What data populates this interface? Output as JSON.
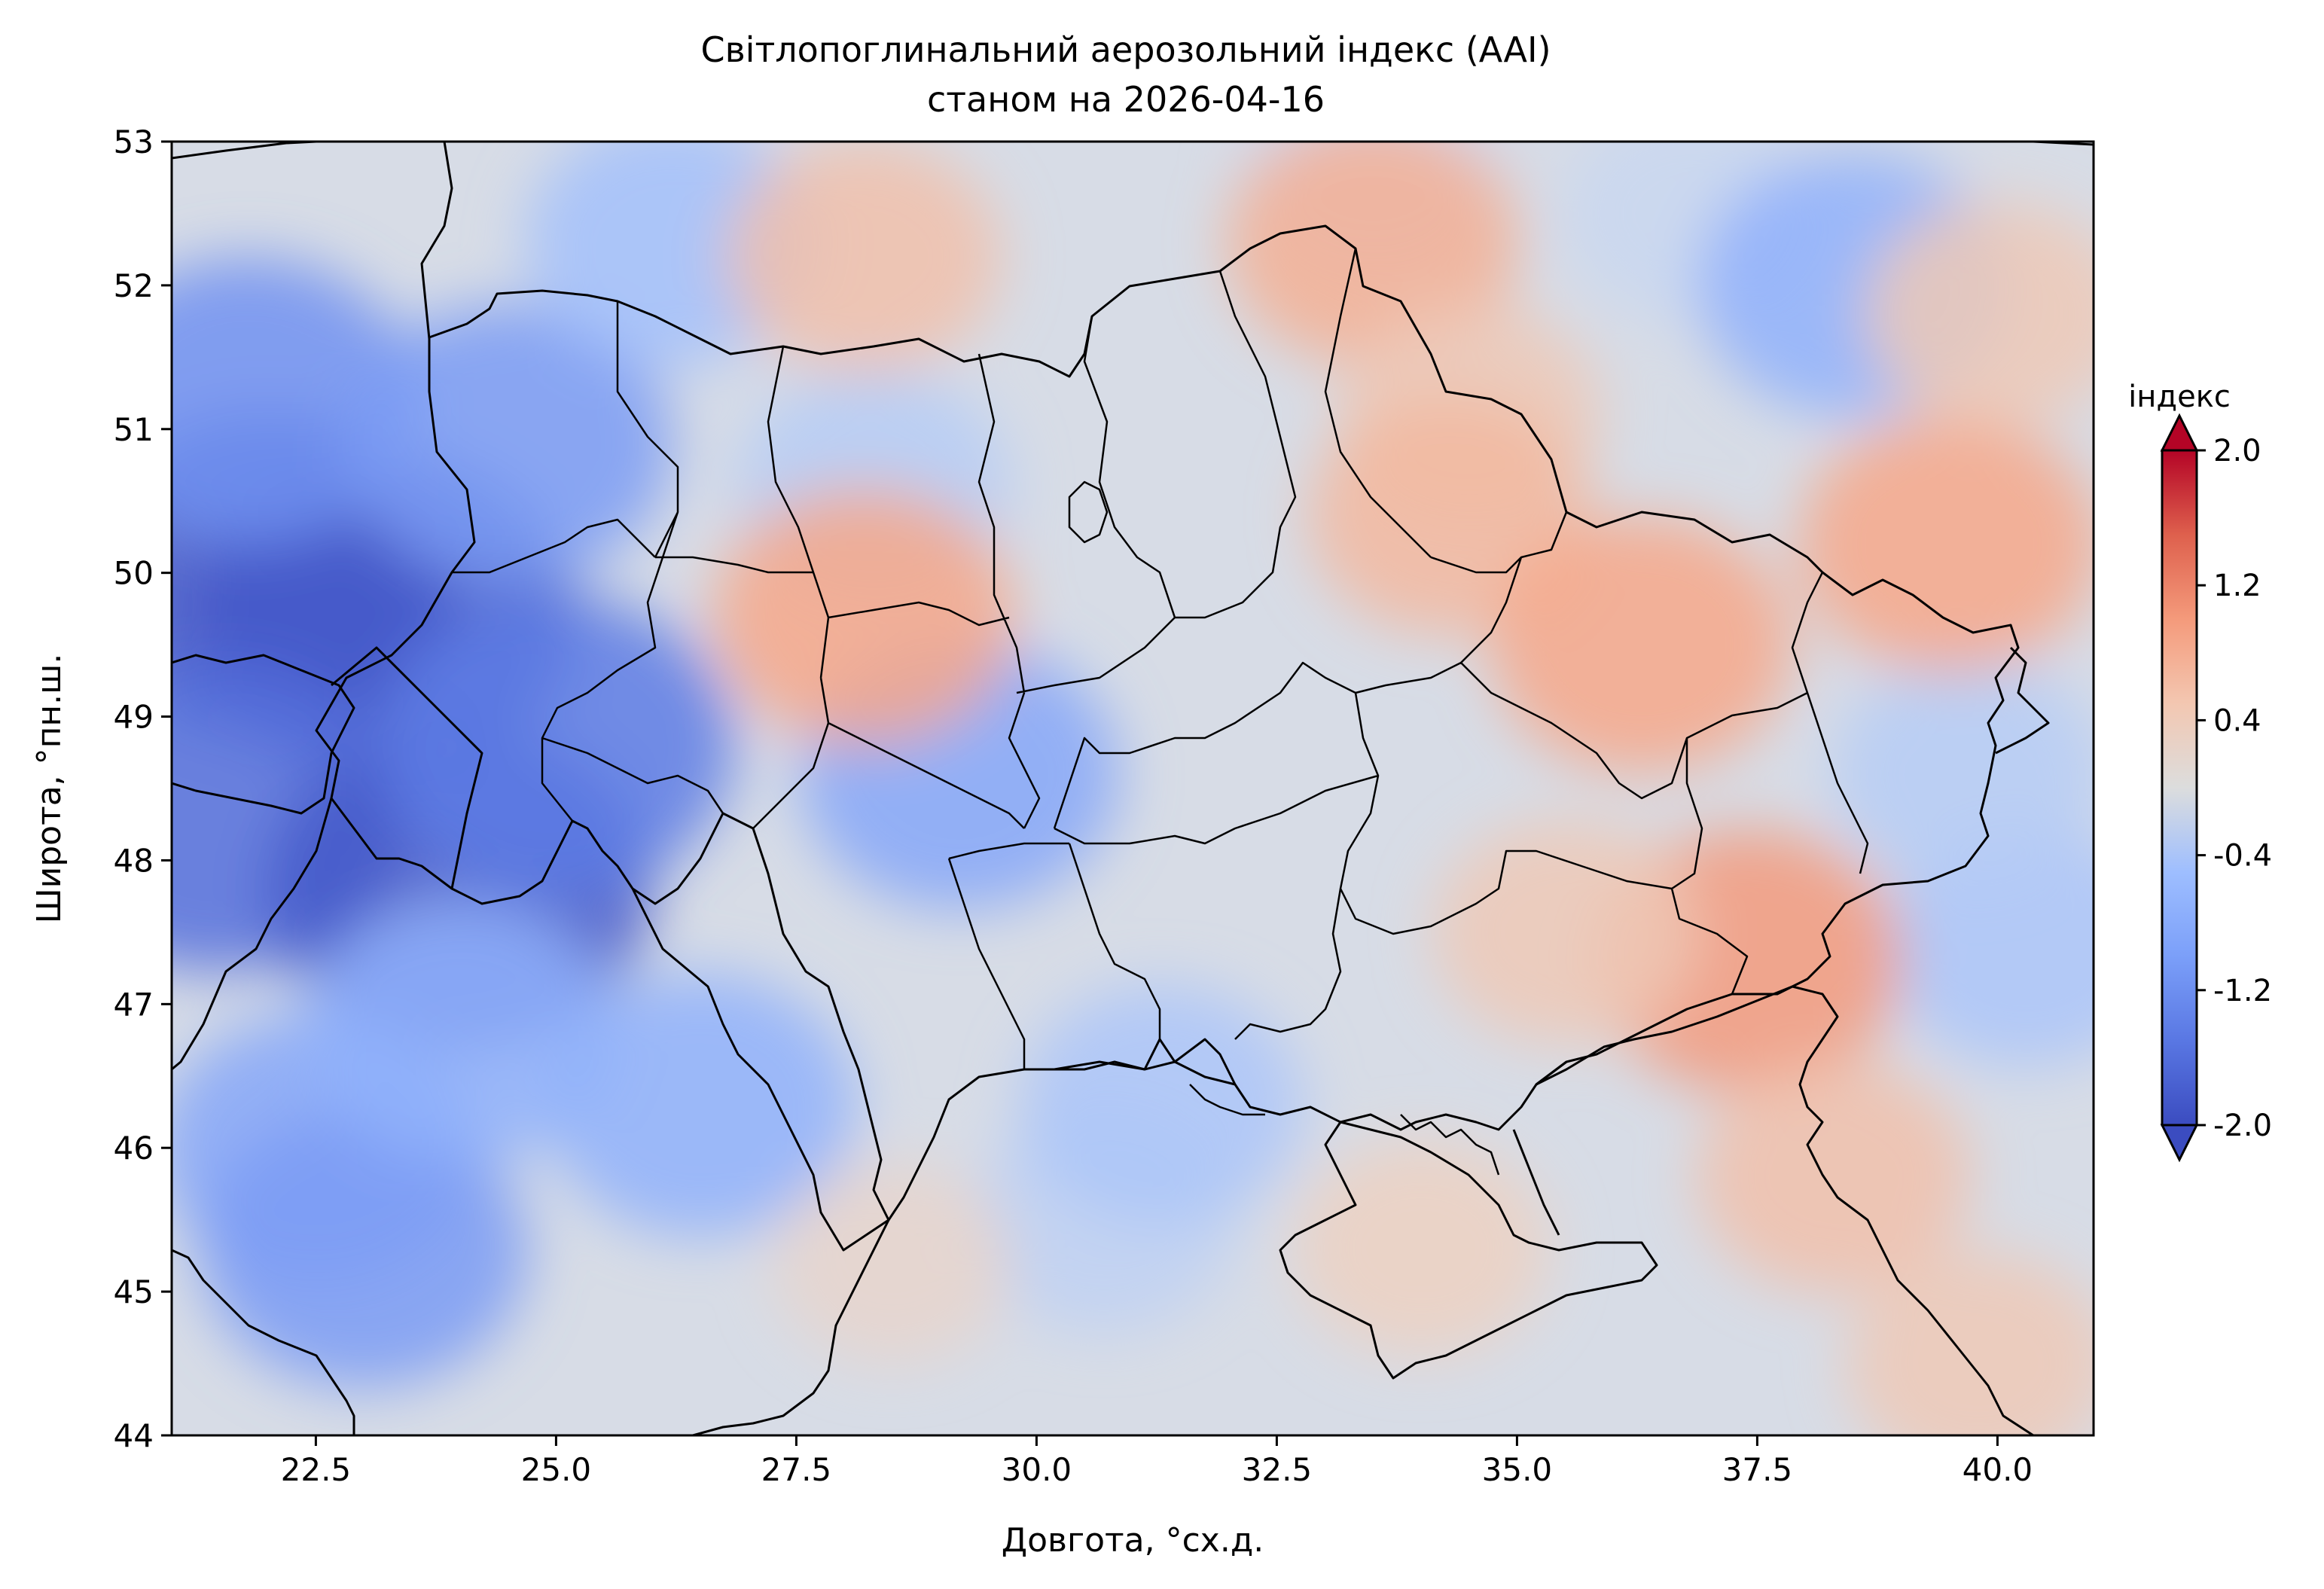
{
  "title": "Світлопоглинальний аерозольний індекс (AAI)",
  "subtitle": "станом на 2026-04-16",
  "x_axis": {
    "label": "Довгота, °сх.д.",
    "range": [
      21.0,
      41.0
    ],
    "ticks": [
      "22.5",
      "25.0",
      "27.5",
      "30.0",
      "32.5",
      "35.0",
      "37.5",
      "40.0"
    ],
    "tick_values": [
      22.5,
      25.0,
      27.5,
      30.0,
      32.5,
      35.0,
      37.5,
      40.0
    ]
  },
  "y_axis": {
    "label": "Широта, °пн.ш.",
    "range": [
      44.0,
      53.0
    ],
    "ticks": [
      "44",
      "45",
      "46",
      "47",
      "48",
      "49",
      "50",
      "51",
      "52",
      "53"
    ],
    "tick_values": [
      44,
      45,
      46,
      47,
      48,
      49,
      50,
      51,
      52,
      53
    ]
  },
  "colorbar": {
    "label": "індекс",
    "range": [
      -2.0,
      2.0
    ],
    "ticks": [
      "-2.0",
      "-1.2",
      "-0.4",
      "0.4",
      "1.2",
      "2.0"
    ],
    "tick_values": [
      -2.0,
      -1.2,
      -0.4,
      0.4,
      1.2,
      2.0
    ],
    "colormap": "coolwarm",
    "extend": "both",
    "colors": [
      "#3b4cc0",
      "#6788ee",
      "#9abbff",
      "#c9d7f0",
      "#dddcdc",
      "#edd1c2",
      "#f7a889",
      "#e26952",
      "#b40426"
    ]
  },
  "map_data": {
    "type": "filled-contour",
    "description_units": "AAI index",
    "blobs": [
      {
        "lon": 22.0,
        "lat": 50.0,
        "value": -1.9
      },
      {
        "lon": 23.2,
        "lat": 49.7,
        "value": -1.9
      },
      {
        "lon": 21.5,
        "lat": 48.3,
        "value": -1.7
      },
      {
        "lon": 24.0,
        "lat": 47.8,
        "value": -1.9
      },
      {
        "lon": 25.0,
        "lat": 48.8,
        "value": -1.6
      },
      {
        "lon": 21.8,
        "lat": 51.2,
        "value": -1.4
      },
      {
        "lon": 24.5,
        "lat": 50.9,
        "value": -1.3
      },
      {
        "lon": 26.2,
        "lat": 52.3,
        "value": -0.9
      },
      {
        "lon": 29.2,
        "lat": 48.6,
        "value": -1.2
      },
      {
        "lon": 28.3,
        "lat": 50.6,
        "value": -0.7
      },
      {
        "lon": 22.5,
        "lat": 46.0,
        "value": -1.2
      },
      {
        "lon": 23.0,
        "lat": 45.3,
        "value": -1.3
      },
      {
        "lon": 26.5,
        "lat": 46.3,
        "value": -1.1
      },
      {
        "lon": 24.0,
        "lat": 46.8,
        "value": -1.1
      },
      {
        "lon": 30.7,
        "lat": 45.5,
        "value": -0.6
      },
      {
        "lon": 31.3,
        "lat": 46.3,
        "value": -0.8
      },
      {
        "lon": 36.8,
        "lat": 52.5,
        "value": -0.5
      },
      {
        "lon": 38.5,
        "lat": 52.0,
        "value": -1.1
      },
      {
        "lon": 33.5,
        "lat": 52.8,
        "value": -0.5
      },
      {
        "lon": 40.3,
        "lat": 47.4,
        "value": -0.8
      },
      {
        "lon": 39.7,
        "lat": 48.6,
        "value": -0.7
      },
      {
        "lon": 28.2,
        "lat": 52.2,
        "value": 0.7
      },
      {
        "lon": 28.2,
        "lat": 49.7,
        "value": 1.0
      },
      {
        "lon": 33.5,
        "lat": 52.3,
        "value": 0.9
      },
      {
        "lon": 34.5,
        "lat": 51.1,
        "value": 0.6
      },
      {
        "lon": 34.3,
        "lat": 50.4,
        "value": 0.8
      },
      {
        "lon": 36.3,
        "lat": 49.5,
        "value": 1.0
      },
      {
        "lon": 37.4,
        "lat": 47.3,
        "value": 1.1
      },
      {
        "lon": 35.5,
        "lat": 47.5,
        "value": 0.6
      },
      {
        "lon": 38.3,
        "lat": 45.8,
        "value": 0.7
      },
      {
        "lon": 39.5,
        "lat": 50.2,
        "value": 1.0
      },
      {
        "lon": 40.0,
        "lat": 51.8,
        "value": 0.6
      },
      {
        "lon": 34.0,
        "lat": 45.3,
        "value": 0.5
      },
      {
        "lon": 39.8,
        "lat": 44.5,
        "value": 0.6
      },
      {
        "lon": 28.5,
        "lat": 45.2,
        "value": 0.3
      }
    ]
  }
}
